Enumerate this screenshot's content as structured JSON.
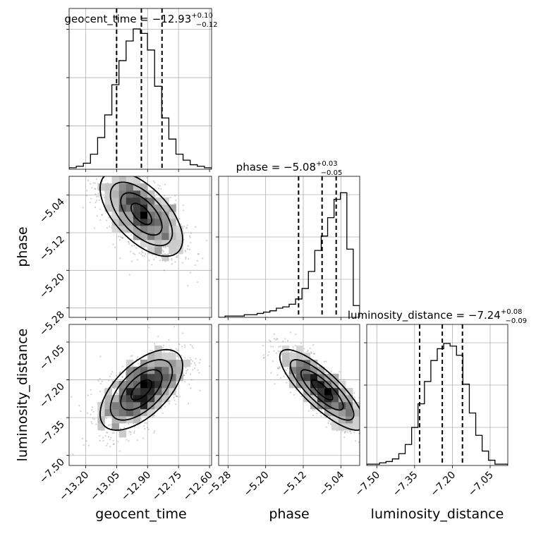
{
  "chart_data": {
    "type": "corner",
    "parameters": [
      "geocent_time",
      "phase",
      "luminosity_distance"
    ],
    "axis_labels": {
      "x": [
        "geocent_time",
        "phase",
        "luminosity_distance"
      ],
      "y": [
        "",
        "phase",
        "luminosity_distance"
      ]
    },
    "ranges": {
      "geocent_time": [
        -13.28,
        -12.59
      ],
      "phase": [
        -5.3,
        -5.0
      ],
      "luminosity_distance": [
        -7.54,
        -6.98
      ]
    },
    "ticks": {
      "geocent_time": [
        "−13.20",
        "−13.05",
        "−12.90",
        "−12.75",
        "−12.60"
      ],
      "phase": [
        "−5.28",
        "−5.20",
        "−5.12",
        "−5.04"
      ],
      "luminosity_distance": [
        "−7.50",
        "−7.35",
        "−7.20",
        "−7.05"
      ]
    },
    "tick_values": {
      "geocent_time": [
        -13.2,
        -13.05,
        -12.9,
        -12.75,
        -12.6
      ],
      "phase": [
        -5.28,
        -5.2,
        -5.12,
        -5.04
      ],
      "luminosity_distance": [
        -7.5,
        -7.35,
        -7.2,
        -7.05
      ]
    },
    "titles": [
      {
        "main": "geocent_time = −12.93",
        "sup": "+0.10",
        "sub": "−0.12"
      },
      {
        "main": "phase = −5.08",
        "sup": "+0.03",
        "sub": "−0.05"
      },
      {
        "main": "luminosity_distance = −7.24",
        "sup": "+0.08",
        "sub": "−0.09"
      }
    ],
    "quantiles": {
      "geocent_time": [
        -13.05,
        -12.93,
        -12.83
      ],
      "phase": [
        -5.13,
        -5.08,
        -5.05
      ],
      "luminosity_distance": [
        -7.33,
        -7.24,
        -7.16
      ]
    },
    "histograms": {
      "geocent_time": {
        "counts": [
          1,
          2,
          4,
          10,
          21,
          36,
          56,
          72,
          85,
          93,
          90,
          79,
          55,
          34,
          20,
          10,
          6,
          3,
          2,
          1
        ],
        "ymax": 100
      },
      "phase": {
        "counts": [
          0,
          1,
          1,
          1,
          2,
          2,
          3,
          4,
          5,
          7,
          8,
          10,
          14,
          22,
          35,
          51,
          62,
          76,
          90,
          95,
          52,
          9
        ],
        "ymax": 100
      },
      "luminosity_distance": {
        "counts": [
          1,
          1,
          2,
          3,
          5,
          9,
          16,
          29,
          47,
          64,
          80,
          89,
          93,
          91,
          84,
          62,
          40,
          23,
          11,
          4,
          1,
          1
        ],
        "ymax": 100
      }
    },
    "correlations": {
      "phase_vs_geocent_time": {
        "center": [
          -12.93,
          -5.08
        ],
        "sd": [
          0.1,
          0.045
        ],
        "rho": -0.6
      },
      "luminosity_distance_vs_geocent_time": {
        "center": [
          -12.93,
          -7.24
        ],
        "sd": [
          0.1,
          0.08
        ],
        "rho": 0.6
      },
      "luminosity_distance_vs_phase": {
        "center": [
          -5.08,
          -7.24
        ],
        "sd": [
          0.045,
          0.08
        ],
        "rho": -0.82
      }
    },
    "grid": true
  }
}
